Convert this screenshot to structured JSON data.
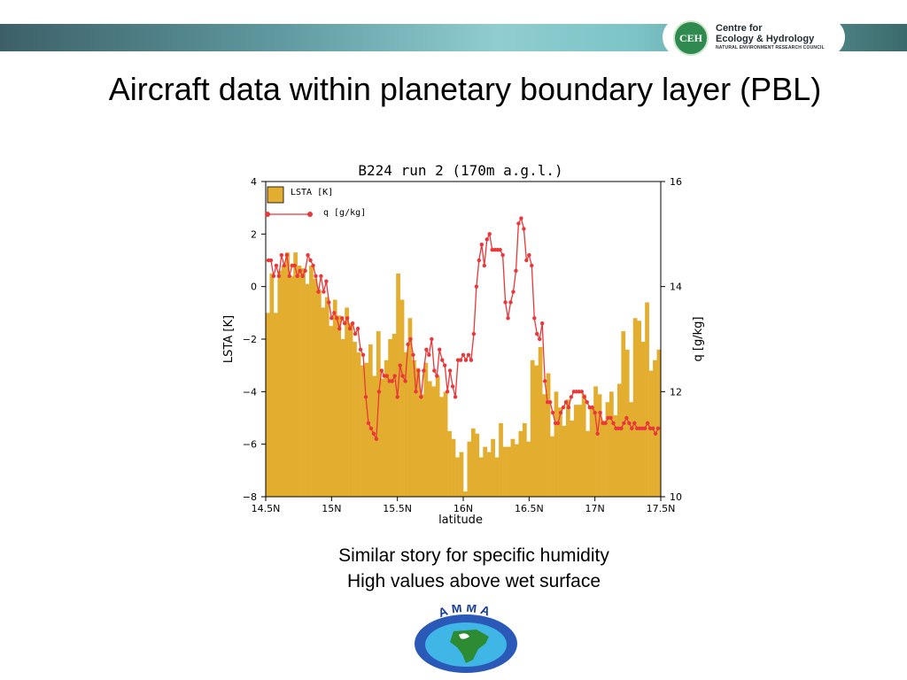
{
  "slide": {
    "title": "Aircraft data within planetary boundary layer (PBL)",
    "caption_line1": "Similar story for specific humidity",
    "caption_line2": "High values above wet surface"
  },
  "logo": {
    "ceh_initials": "CEH",
    "ceh_line1": "Centre for",
    "ceh_line2": "Ecology & Hydrology",
    "ceh_line3": "NATURAL ENVIRONMENT RESEARCH COUNCIL",
    "amma_text": "AMMA"
  },
  "colors": {
    "bar": "#e3ae30",
    "line": "#e8383a",
    "band_dark": "#3d6068",
    "band_light": "#8fcdd0"
  },
  "chart_data": {
    "type": "bar",
    "title": "B224 run 2 (170m a.g.l.)",
    "xlabel": "latitude",
    "ylabel": "LSTA [K]",
    "y2label": "q [g/kg]",
    "xlim": [
      14.5,
      17.5
    ],
    "ylim": [
      -8,
      4
    ],
    "y2lim": [
      10,
      16
    ],
    "x_ticks": [
      14.5,
      15,
      15.5,
      16,
      16.5,
      17,
      17.5
    ],
    "x_tick_labels": [
      "14.5N",
      "15N",
      "15.5N",
      "16N",
      "16.5N",
      "17N",
      "17.5N"
    ],
    "y_ticks": [
      -8,
      -6,
      -4,
      -2,
      0,
      2,
      4
    ],
    "y_tick_labels": [
      "−8",
      "−6",
      "−4",
      "−2",
      "0",
      "2",
      "4"
    ],
    "y2_ticks": [
      10,
      12,
      14,
      16
    ],
    "y2_tick_labels": [
      "10",
      "12",
      "14",
      "16"
    ],
    "legend_position": "top-left",
    "series": [
      {
        "name": "LSTA [K]",
        "kind": "bar",
        "bar_width": 0.03,
        "x": [
          14.5,
          14.53,
          14.56,
          14.59,
          14.62,
          14.65,
          14.68,
          14.71,
          14.74,
          14.77,
          14.8,
          14.83,
          14.86,
          14.89,
          14.92,
          14.95,
          14.98,
          15.01,
          15.04,
          15.07,
          15.1,
          15.13,
          15.16,
          15.19,
          15.22,
          15.25,
          15.28,
          15.31,
          15.34,
          15.37,
          15.4,
          15.43,
          15.46,
          15.49,
          15.52,
          15.55,
          15.58,
          15.61,
          15.64,
          15.67,
          15.7,
          15.73,
          15.76,
          15.79,
          15.82,
          15.85,
          15.88,
          15.91,
          15.94,
          15.97,
          16.0,
          16.03,
          16.06,
          16.09,
          16.12,
          16.15,
          16.18,
          16.21,
          16.24,
          16.27,
          16.3,
          16.33,
          16.36,
          16.39,
          16.42,
          16.45,
          16.48,
          16.51,
          16.54,
          16.57,
          16.6,
          16.63,
          16.66,
          16.69,
          16.72,
          16.75,
          16.78,
          16.81,
          16.84,
          16.87,
          16.9,
          16.93,
          16.96,
          16.99,
          17.02,
          17.05,
          17.08,
          17.11,
          17.14,
          17.17,
          17.2,
          17.23,
          17.26,
          17.29,
          17.32,
          17.35,
          17.38,
          17.41,
          17.44,
          17.47
        ],
        "values": [
          -1,
          0.5,
          -1,
          0.6,
          0.8,
          1.3,
          0.4,
          1.3,
          0.8,
          0.7,
          0.1,
          0.8,
          0.3,
          -0.1,
          -0.8,
          -0.4,
          -1.5,
          -0.5,
          -1.1,
          -2,
          -0.8,
          -1.4,
          -2.1,
          -2.5,
          -3,
          -2.9,
          -2.2,
          -3.4,
          -1.7,
          -3.5,
          -2.8,
          -2,
          -1.8,
          0.5,
          -0.5,
          -2.5,
          -1.2,
          -2.8,
          -3.1,
          -4.1,
          -2.9,
          -3.6,
          -3.8,
          -3.4,
          -4.2,
          -4,
          -5.5,
          -5.8,
          -6.5,
          -6.3,
          -7.8,
          -5.9,
          -5.4,
          -5.6,
          -6.5,
          -6.1,
          -6.3,
          -5.8,
          -6.5,
          -5.2,
          -6.1,
          -6.1,
          -5.8,
          -6,
          -5.5,
          -5.2,
          -5.9,
          -2.8,
          -3,
          -2.3,
          -4.1,
          -3.3,
          -5.7,
          -4,
          -4.6,
          -5.3,
          -4.3,
          -5.1,
          -4.5,
          -4.5,
          -4.1,
          -5.5,
          -4.6,
          -3.8,
          -4.1,
          -5.1,
          -4.4,
          -4,
          -4.9,
          -3.7,
          -1.7,
          -2.4,
          -4.4,
          -1.2,
          -1.3,
          -2.1,
          -0.6,
          -3.2,
          -2.8,
          -2.4
        ]
      },
      {
        "name": "q [g/kg]",
        "kind": "line",
        "x": [
          14.52,
          14.54,
          14.56,
          14.58,
          14.6,
          14.62,
          14.64,
          14.66,
          14.68,
          14.7,
          14.72,
          14.74,
          14.76,
          14.78,
          14.8,
          14.82,
          14.84,
          14.86,
          14.88,
          14.9,
          14.92,
          14.94,
          14.96,
          14.98,
          15.0,
          15.02,
          15.04,
          15.06,
          15.08,
          15.1,
          15.12,
          15.14,
          15.16,
          15.18,
          15.2,
          15.22,
          15.24,
          15.26,
          15.28,
          15.3,
          15.32,
          15.34,
          15.36,
          15.38,
          15.4,
          15.42,
          15.44,
          15.46,
          15.48,
          15.5,
          15.52,
          15.54,
          15.56,
          15.58,
          15.6,
          15.62,
          15.64,
          15.66,
          15.68,
          15.7,
          15.72,
          15.74,
          15.76,
          15.78,
          15.8,
          15.82,
          15.84,
          15.86,
          15.88,
          15.9,
          15.92,
          15.94,
          15.96,
          15.98,
          16.0,
          16.02,
          16.04,
          16.06,
          16.08,
          16.1,
          16.12,
          16.14,
          16.16,
          16.18,
          16.2,
          16.22,
          16.24,
          16.26,
          16.28,
          16.3,
          16.32,
          16.34,
          16.36,
          16.38,
          16.4,
          16.42,
          16.44,
          16.46,
          16.48,
          16.5,
          16.52,
          16.54,
          16.56,
          16.58,
          16.6,
          16.62,
          16.64,
          16.66,
          16.68,
          16.7,
          16.72,
          16.74,
          16.76,
          16.78,
          16.8,
          16.82,
          16.84,
          16.86,
          16.88,
          16.9,
          16.92,
          16.94,
          16.96,
          16.98,
          17.0,
          17.02,
          17.04,
          17.06,
          17.08,
          17.1,
          17.12,
          17.14,
          17.16,
          17.18,
          17.2,
          17.22,
          17.24,
          17.26,
          17.28,
          17.3,
          17.32,
          17.34,
          17.36,
          17.38,
          17.4,
          17.42,
          17.44,
          17.46,
          17.48
        ],
        "values": [
          14.5,
          14.5,
          14.2,
          14.4,
          14.2,
          14.6,
          14.4,
          14.6,
          14.2,
          14.4,
          14.4,
          14.2,
          14.3,
          14.2,
          14.3,
          14.6,
          14.5,
          14.4,
          14.2,
          13.9,
          14.2,
          13.9,
          14.1,
          13.7,
          13.4,
          13.5,
          13.4,
          13.2,
          13.4,
          13.3,
          13.4,
          13.2,
          13.3,
          13.1,
          13.2,
          12.8,
          12.7,
          11.9,
          11.4,
          11.3,
          11.2,
          11.1,
          12,
          12.4,
          12.3,
          12.3,
          12.2,
          12.2,
          12.3,
          11.9,
          12.5,
          12.3,
          12.2,
          12.9,
          13,
          12.7,
          12,
          12.4,
          11.9,
          12.4,
          12.8,
          12.7,
          13.0,
          12.4,
          12.3,
          12.8,
          12.6,
          12.5,
          12,
          12.4,
          12.1,
          11.9,
          12.6,
          12.6,
          12.7,
          12.6,
          12.7,
          12.6,
          13.1,
          14,
          14.5,
          14.8,
          14.4,
          14.9,
          15.0,
          14.7,
          14.7,
          14.7,
          14.7,
          14.6,
          13.7,
          13.4,
          13.7,
          13.9,
          14.3,
          15.2,
          15.3,
          15.1,
          14.5,
          14.6,
          14.4,
          13.4,
          13.1,
          13.0,
          13.3,
          12.2,
          11.8,
          11.8,
          11.6,
          11.4,
          11.4,
          11.6,
          11.7,
          11.8,
          11.7,
          11.9,
          12.0,
          12.0,
          12.0,
          12.0,
          11.9,
          11.8,
          11.7,
          11.7,
          11.6,
          11.2,
          11.6,
          11.4,
          11.4,
          11.5,
          11.5,
          11.4,
          11.3,
          11.3,
          11.3,
          11.4,
          11.5,
          11.4,
          11.3,
          11.4,
          11.3,
          11.3,
          11.3,
          11.3,
          11.4,
          11.3,
          11.3,
          11.2,
          11.3
        ]
      }
    ]
  }
}
